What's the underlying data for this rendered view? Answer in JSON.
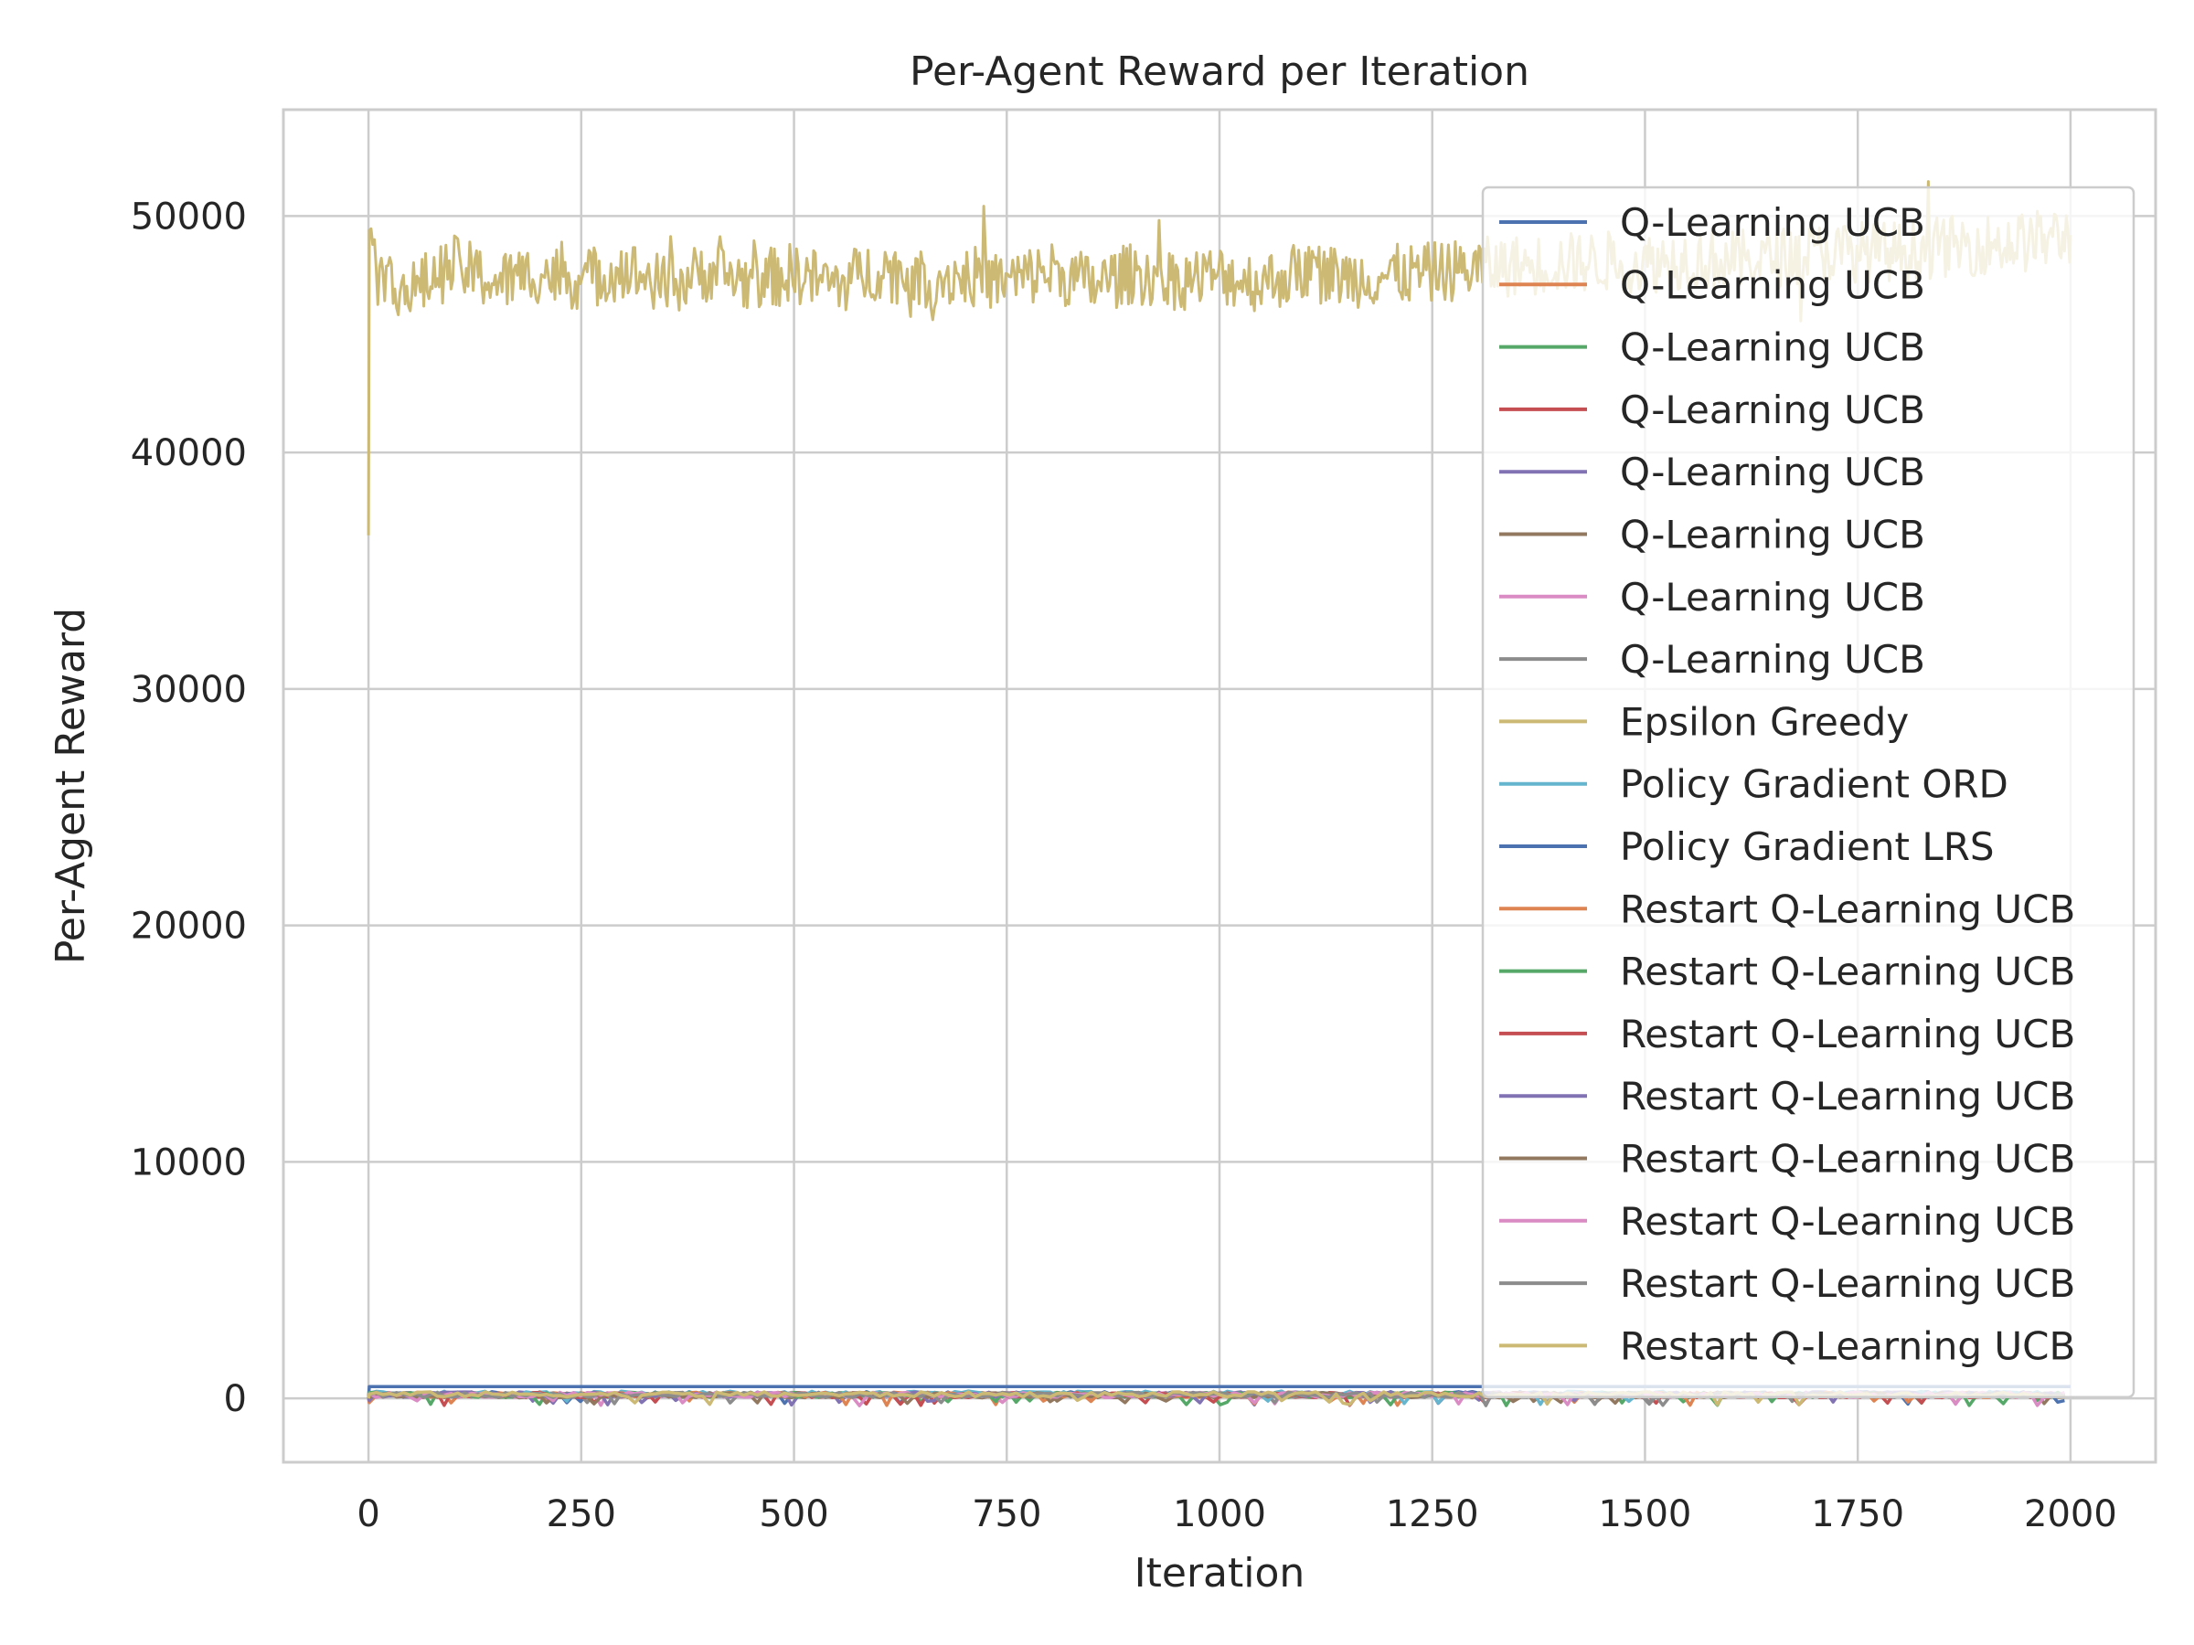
{
  "chart_data": {
    "type": "line",
    "title": "Per-Agent Reward per Iteration",
    "xlabel": "Iteration",
    "ylabel": "Per-Agent Reward",
    "xlim": [
      -100,
      2100
    ],
    "ylim": [
      -2700,
      54500
    ],
    "xticks": [
      0,
      250,
      500,
      750,
      1000,
      1250,
      1500,
      1750,
      2000
    ],
    "yticks": [
      0,
      10000,
      20000,
      30000,
      40000,
      50000
    ],
    "grid": true,
    "legend_position": "upper right",
    "series": [
      {
        "name": "Q-Learning UCB",
        "color": "#4c72b0",
        "kind": "low",
        "level": 180
      },
      {
        "name": "Q-Learning UCB",
        "color": "#dd8452",
        "kind": "low",
        "level": 150
      },
      {
        "name": "Q-Learning UCB",
        "color": "#55a868",
        "kind": "low",
        "level": 160
      },
      {
        "name": "Q-Learning UCB",
        "color": "#c44e52",
        "kind": "low",
        "level": 140
      },
      {
        "name": "Q-Learning UCB",
        "color": "#8172b3",
        "kind": "low",
        "level": 170
      },
      {
        "name": "Q-Learning UCB",
        "color": "#937860",
        "kind": "low",
        "level": 130
      },
      {
        "name": "Q-Learning UCB",
        "color": "#da8bc3",
        "kind": "low",
        "level": 155
      },
      {
        "name": "Q-Learning UCB",
        "color": "#8c8c8c",
        "kind": "low",
        "level": 145
      },
      {
        "name": "Epsilon Greedy",
        "color": "#ccb974",
        "kind": "high",
        "start": 36500,
        "points": [
          [
            0,
            36500
          ],
          [
            1,
            47000
          ],
          [
            2,
            49800
          ],
          [
            10,
            47500
          ],
          [
            50,
            46800
          ],
          [
            100,
            47900
          ],
          [
            150,
            47200
          ],
          [
            200,
            47600
          ],
          [
            250,
            47300
          ],
          [
            300,
            47800
          ],
          [
            350,
            47000
          ],
          [
            400,
            47700
          ],
          [
            450,
            47200
          ],
          [
            500,
            47600
          ],
          [
            550,
            47100
          ],
          [
            600,
            47800
          ],
          [
            650,
            47300
          ],
          [
            700,
            47500
          ],
          [
            750,
            47200
          ],
          [
            800,
            47700
          ],
          [
            850,
            47100
          ],
          [
            900,
            47600
          ],
          [
            950,
            47300
          ],
          [
            1000,
            47500
          ],
          [
            1050,
            47200
          ],
          [
            1100,
            47700
          ],
          [
            1150,
            47400
          ],
          [
            1200,
            47500
          ],
          [
            1250,
            47600
          ],
          [
            1300,
            47800
          ],
          [
            1350,
            47900
          ],
          [
            1400,
            48000
          ],
          [
            1450,
            48100
          ],
          [
            1500,
            48000
          ],
          [
            1550,
            48200
          ],
          [
            1600,
            48100
          ],
          [
            1650,
            48200
          ],
          [
            1700,
            48400
          ],
          [
            1750,
            48500
          ],
          [
            1800,
            48500
          ],
          [
            1850,
            48700
          ],
          [
            1900,
            48800
          ],
          [
            1950,
            48900
          ],
          [
            2000,
            49200
          ]
        ]
      },
      {
        "name": "Policy Gradient ORD",
        "color": "#64b5cd",
        "kind": "low",
        "level": 200
      },
      {
        "name": "Policy Gradient LRS",
        "color": "#4c72b0",
        "kind": "flat",
        "level": 500
      },
      {
        "name": "Restart Q-Learning UCB",
        "color": "#dd8452",
        "kind": "low",
        "level": 160
      },
      {
        "name": "Restart Q-Learning UCB",
        "color": "#55a868",
        "kind": "low",
        "level": 150
      },
      {
        "name": "Restart Q-Learning UCB",
        "color": "#c44e52",
        "kind": "low",
        "level": 140
      },
      {
        "name": "Restart Q-Learning UCB",
        "color": "#8172b3",
        "kind": "low",
        "level": 165
      },
      {
        "name": "Restart Q-Learning UCB",
        "color": "#937860",
        "kind": "low",
        "level": 135
      },
      {
        "name": "Restart Q-Learning UCB",
        "color": "#da8bc3",
        "kind": "low",
        "level": 150
      },
      {
        "name": "Restart Q-Learning UCB",
        "color": "#8c8c8c",
        "kind": "low",
        "level": 145
      },
      {
        "name": "Restart Q-Learning UCB",
        "color": "#ccb974",
        "kind": "low",
        "level": 170
      }
    ],
    "x_range": [
      0,
      2000
    ]
  }
}
